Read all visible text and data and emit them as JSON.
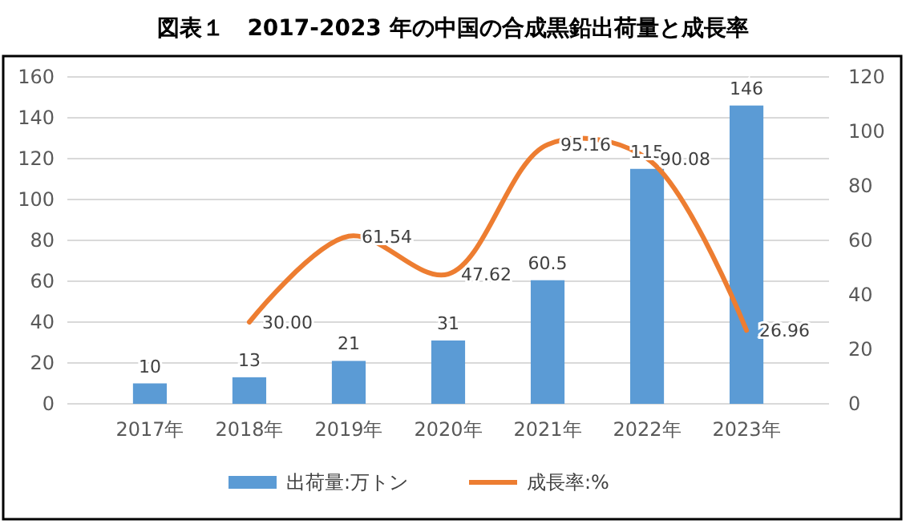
{
  "chart_data": {
    "type": "bar",
    "title": "図表１　2017-2023 年の中国の合成黒鉛出荷量と成長率",
    "categories": [
      "2017年",
      "2018年",
      "2019年",
      "2020年",
      "2021年",
      "2022年",
      "2023年"
    ],
    "series": [
      {
        "name": "出荷量:万トン",
        "color": "#5b9bd5",
        "values": [
          10,
          13,
          21,
          31,
          60.5,
          115,
          146
        ],
        "value_labels": [
          "10",
          "13",
          "21",
          "31",
          "60.5",
          "115",
          "146"
        ]
      },
      {
        "name": "成長率:%",
        "type": "line",
        "axis": "y2",
        "color": "#ed7d31",
        "values": [
          null,
          30,
          61.54,
          47.62,
          95.16,
          90.08,
          26.96
        ],
        "value_labels": [
          null,
          "30.00",
          "61.54",
          "47.62",
          "95.16",
          "90.08",
          "26.96"
        ]
      }
    ],
    "ylim": [
      0,
      160
    ],
    "yticks": [
      0,
      20,
      40,
      60,
      80,
      100,
      120,
      140,
      160
    ],
    "y2lim": [
      0,
      120
    ],
    "y2ticks": [
      0,
      20,
      40,
      60,
      80,
      100,
      120
    ],
    "grid": "y",
    "legend": "bottom",
    "marker": "none",
    "line_style": "solid"
  }
}
